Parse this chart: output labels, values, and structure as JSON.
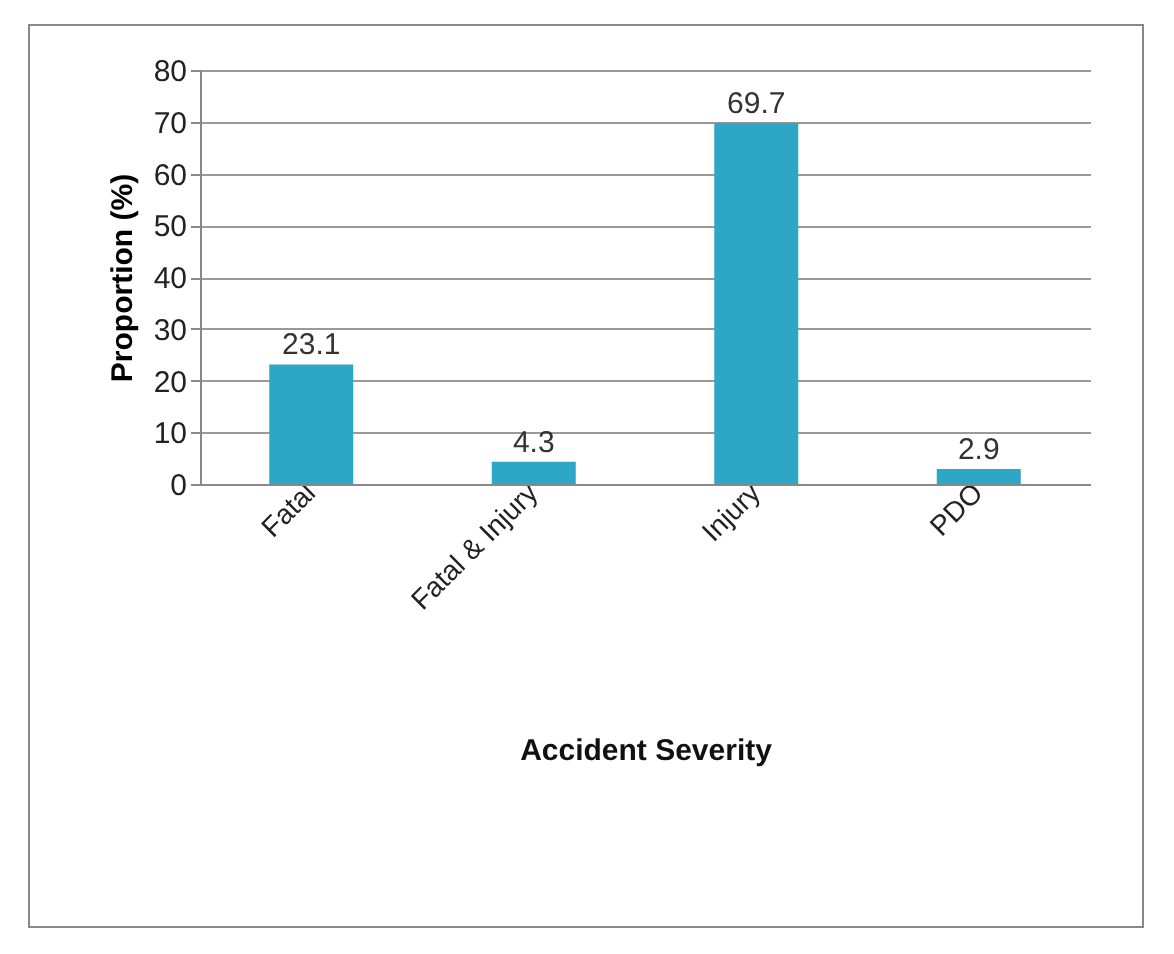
{
  "chart_data": {
    "type": "bar",
    "xlabel": "Accident Severity",
    "ylabel": "Proportion (%)",
    "categories": [
      "Fatal",
      "Fatal & Injury",
      "Injury",
      "PDO"
    ],
    "values": [
      23.1,
      4.3,
      69.7,
      2.9
    ],
    "color": "#2ea6c6",
    "ylim": [
      0,
      80
    ],
    "yticks": [
      0,
      10,
      20,
      30,
      40,
      50,
      60,
      70,
      80
    ],
    "grid": "y",
    "data_labels": true
  }
}
